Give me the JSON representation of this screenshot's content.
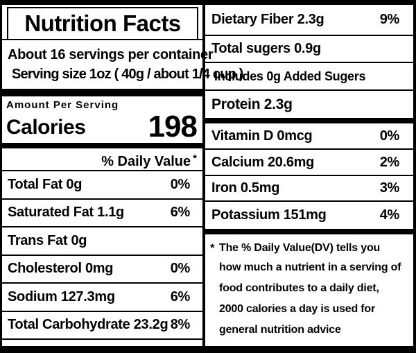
{
  "colors": {
    "ink": "#000000",
    "paper": "#ffffff"
  },
  "header": {
    "title": "Nutrition Facts",
    "servings_per_container": "About 16 servings per container",
    "serving_size": "Serving size 1oz ( 40g / about 1/4 cup )"
  },
  "calories": {
    "amount_per_serving_label": "Amount Per Serving",
    "label": "Calories",
    "value": "198"
  },
  "daily_value_header": {
    "label": "% Daily Value",
    "asterisk": "*"
  },
  "left_rows": [
    {
      "label": "Total Fat  0g",
      "dv": "0%"
    },
    {
      "label": "Saturated Fat 1.1g",
      "dv": "6%"
    },
    {
      "label": "Trans Fat 0g",
      "dv": ""
    },
    {
      "label": "Cholesterol  0mg",
      "dv": "0%"
    },
    {
      "label": "Sodium  127.3mg",
      "dv": "6%"
    },
    {
      "label": "Total Carbohydrate 23.2g",
      "dv": "8%"
    }
  ],
  "right_rows": [
    {
      "label": "Dietary Fiber  2.3g",
      "dv": "9%"
    },
    {
      "label": "Total sugers  0.9g",
      "dv": ""
    },
    {
      "label": "Includes 0g Added Sugers",
      "dv": ""
    },
    {
      "label": "Protein  2.3g",
      "dv": ""
    },
    {
      "label": "Vitamin D 0mcg",
      "dv": "0%"
    },
    {
      "label": "Calcium  20.6mg",
      "dv": "2%"
    },
    {
      "label": "Iron 0.5mg",
      "dv": "3%"
    },
    {
      "label": "Potassium  151mg",
      "dv": "4%"
    }
  ],
  "footnote": {
    "asterisk": "*",
    "lines": [
      "The % Daily Value(DV)  tells you",
      "how much a nutrient in a serving of",
      "food contributes to a daily diet,",
      "2000 calories a day is used for",
      "general nutrition advice"
    ]
  }
}
